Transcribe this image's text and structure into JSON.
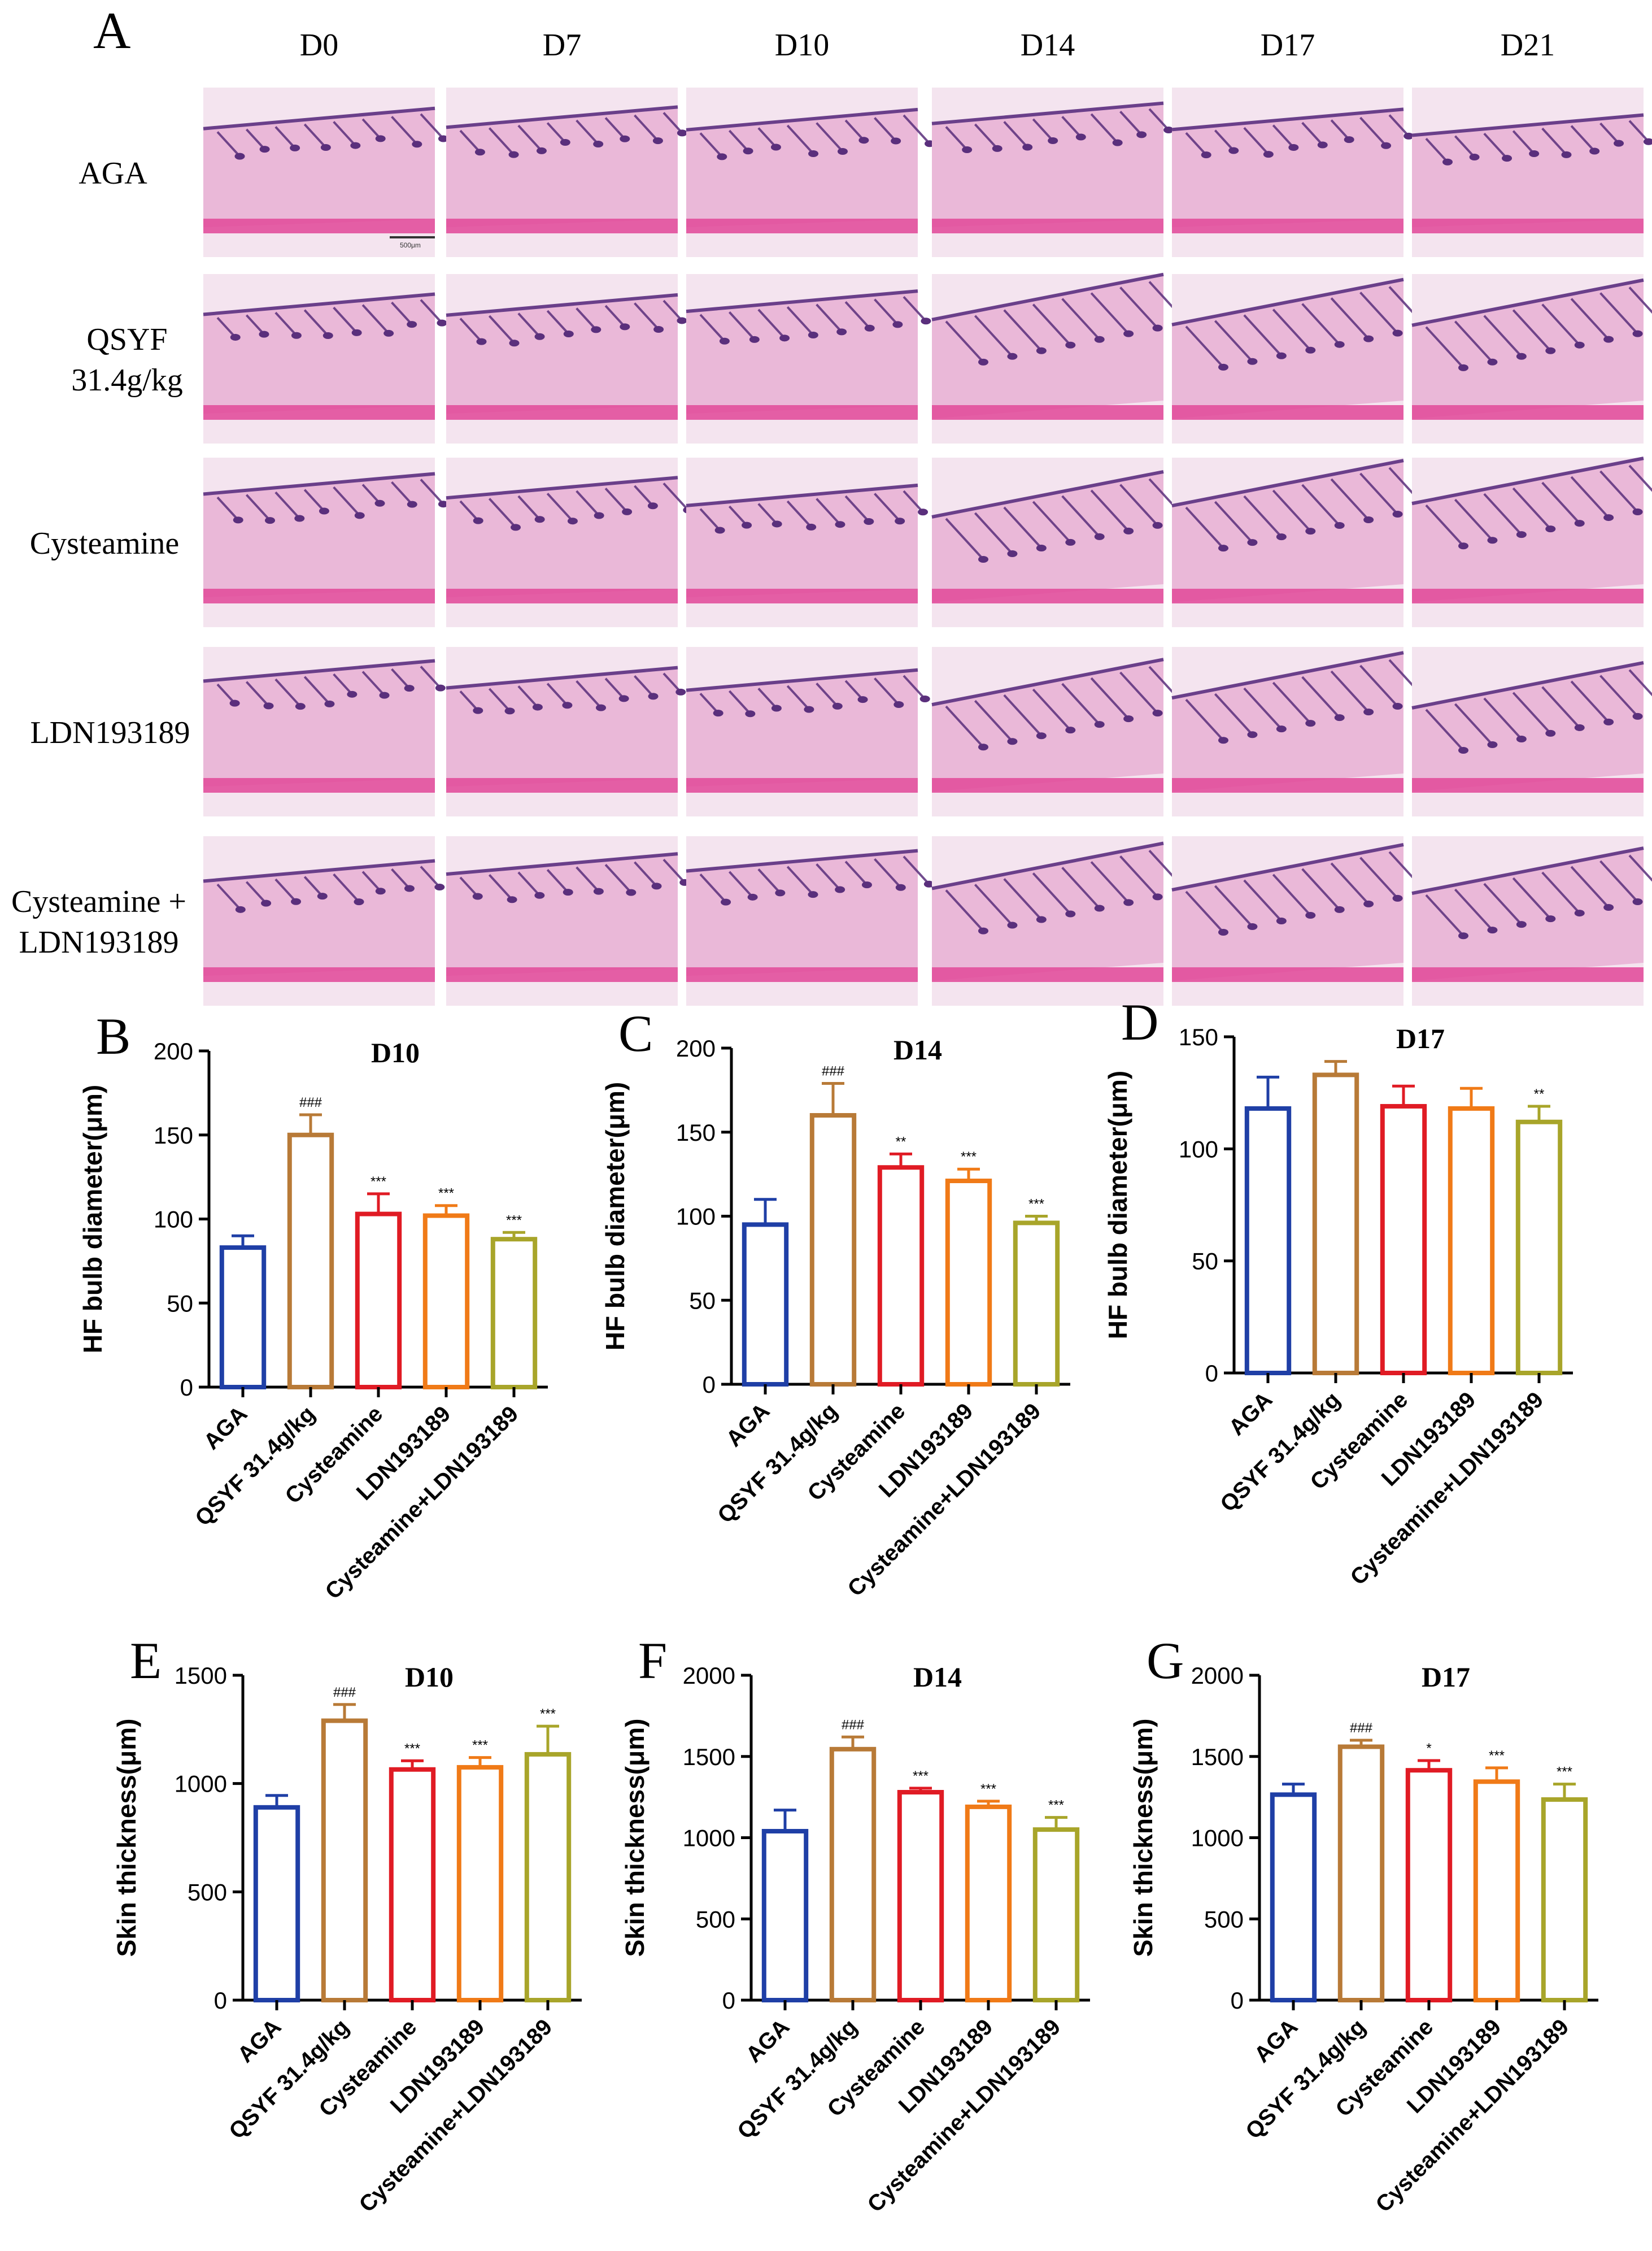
{
  "panel_a": {
    "letter": "A",
    "days": [
      "D0",
      "D7",
      "D10",
      "D14",
      "D17",
      "D21"
    ],
    "groups": [
      "AGA",
      "QSYF\n31.4g/kg",
      "Cysteamine",
      "LDN193189",
      "Cysteamine +\nLDN193189"
    ],
    "scale_bar_label": "500μm",
    "tile_colors": {
      "background": "#f4e4ef",
      "dermis": "#eab8d8",
      "epidermis": "#6a3f8a",
      "follicle": "#5a2f7c",
      "muscle": "#e24f9c"
    }
  },
  "colors": {
    "AGA": "#1f3fa6",
    "QSYF 31.4g/kg": "#b87a37",
    "Cysteamine": "#e01b24",
    "LDN193189": "#f07a17",
    "Cysteamine+LDN193189": "#a8a52a"
  },
  "chart_data": [
    {
      "panel": "B",
      "type": "bar",
      "title": "D10",
      "ylabel": "HF bulb diameter(μm)",
      "xlabel": "",
      "ylim": [
        0,
        200
      ],
      "yticks": [
        0,
        50,
        100,
        150,
        200
      ],
      "categories": [
        "AGA",
        "QSYF 31.4g/kg",
        "Cysteamine",
        "LDN193189",
        "Cysteamine+LDN193189"
      ],
      "values": [
        83,
        150,
        103,
        102,
        88
      ],
      "errors": [
        7,
        12,
        12,
        6,
        4
      ],
      "annotations": [
        "",
        "###",
        "***",
        "***",
        "***"
      ]
    },
    {
      "panel": "C",
      "type": "bar",
      "title": "D14",
      "ylabel": "HF bulb diameter(μm)",
      "xlabel": "",
      "ylim": [
        0,
        200
      ],
      "yticks": [
        0,
        50,
        100,
        150,
        200
      ],
      "categories": [
        "AGA",
        "QSYF 31.4g/kg",
        "Cysteamine",
        "LDN193189",
        "Cysteamine+LDN193189"
      ],
      "values": [
        95,
        160,
        129,
        121,
        96
      ],
      "errors": [
        15,
        19,
        8,
        7,
        4
      ],
      "annotations": [
        "",
        "###",
        "**",
        "***",
        "***"
      ]
    },
    {
      "panel": "D",
      "type": "bar",
      "title": "D17",
      "ylabel": "HF bulb diameter(μm)",
      "xlabel": "",
      "ylim": [
        0,
        150
      ],
      "yticks": [
        0,
        50,
        100,
        150
      ],
      "categories": [
        "AGA",
        "QSYF 31.4g/kg",
        "Cysteamine",
        "LDN193189",
        "Cysteamine+LDN193189"
      ],
      "values": [
        118,
        133,
        119,
        118,
        112
      ],
      "errors": [
        14,
        6,
        9,
        9,
        7
      ],
      "annotations": [
        "",
        "",
        "",
        "",
        "**"
      ]
    },
    {
      "panel": "E",
      "type": "bar",
      "title": "D10",
      "ylabel": "Skin thickness(μm)",
      "xlabel": "",
      "ylim": [
        0,
        1500
      ],
      "yticks": [
        0,
        500,
        1000,
        1500
      ],
      "categories": [
        "AGA",
        "QSYF 31.4g/kg",
        "Cysteamine",
        "LDN193189",
        "Cysteamine+LDN193189"
      ],
      "values": [
        890,
        1290,
        1065,
        1075,
        1135
      ],
      "errors": [
        55,
        75,
        40,
        45,
        130
      ],
      "annotations": [
        "",
        "###",
        "***",
        "***",
        "***"
      ]
    },
    {
      "panel": "F",
      "type": "bar",
      "title": "D14",
      "ylabel": "Skin thickness(μm)",
      "xlabel": "",
      "ylim": [
        0,
        2000
      ],
      "yticks": [
        0,
        500,
        1000,
        1500,
        2000
      ],
      "categories": [
        "AGA",
        "QSYF 31.4g/kg",
        "Cysteamine",
        "LDN193189",
        "Cysteamine+LDN193189"
      ],
      "values": [
        1040,
        1545,
        1280,
        1190,
        1050
      ],
      "errors": [
        130,
        75,
        25,
        35,
        75
      ],
      "annotations": [
        "",
        "###",
        "***",
        "***",
        "***"
      ]
    },
    {
      "panel": "G",
      "type": "bar",
      "title": "D17",
      "ylabel": "Skin thickness(μm)",
      "xlabel": "",
      "ylim": [
        0,
        2000
      ],
      "yticks": [
        0,
        500,
        1000,
        1500,
        2000
      ],
      "categories": [
        "AGA",
        "QSYF 31.4g/kg",
        "Cysteamine",
        "LDN193189",
        "Cysteamine+LDN193189"
      ],
      "values": [
        1265,
        1560,
        1415,
        1345,
        1235
      ],
      "errors": [
        65,
        40,
        60,
        85,
        95
      ],
      "annotations": [
        "",
        "###",
        "*",
        "***",
        "***"
      ]
    }
  ]
}
